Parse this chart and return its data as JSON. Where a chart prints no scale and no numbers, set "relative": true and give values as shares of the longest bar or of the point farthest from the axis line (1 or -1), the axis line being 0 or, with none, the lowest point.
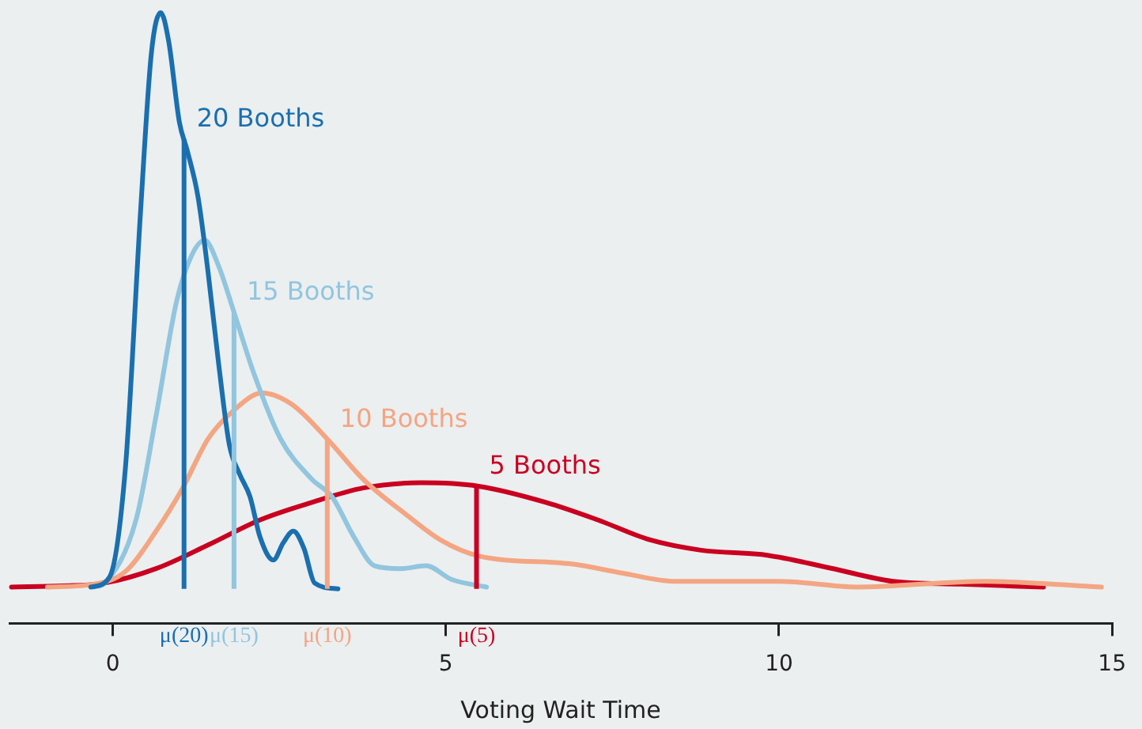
{
  "chart_data": {
    "type": "line",
    "relative": true,
    "xlabel": "Voting Wait Time",
    "xlim": [
      -1.55,
      15
    ],
    "xticks": [
      0,
      5,
      10,
      15
    ],
    "grid": false,
    "legend": false,
    "marker": "none",
    "series": [
      {
        "name": "20 Booths",
        "color": "#1a6faf",
        "x": [
          -0.33,
          -0.05,
          0.19,
          0.42,
          0.58,
          0.72,
          0.84,
          1.0,
          1.12,
          1.28,
          1.43,
          1.59,
          1.75,
          1.9,
          2.06,
          2.21,
          2.41,
          2.56,
          2.71,
          2.87,
          3.03,
          3.38
        ],
        "values": [
          0.003,
          0.02,
          0.21,
          0.66,
          0.93,
          1,
          0.95,
          0.81,
          0.76,
          0.68,
          0.55,
          0.39,
          0.25,
          0.2,
          0.16,
          0.09,
          0.05,
          0.08,
          0.1,
          0.07,
          0.01,
          0
        ]
      },
      {
        "name": "15 Booths",
        "color": "#92c5de",
        "x": [
          -0.28,
          -0.12,
          0.35,
          0.65,
          0.96,
          1.19,
          1.38,
          1.59,
          1.82,
          2.13,
          2.52,
          2.99,
          3.29,
          3.62,
          3.93,
          4.32,
          4.7,
          5.09,
          5.61
        ],
        "values": [
          0.003,
          0.01,
          0.12,
          0.3,
          0.5,
          0.58,
          0.605,
          0.56,
          0.48,
          0.37,
          0.26,
          0.19,
          0.16,
          0.09,
          0.04,
          0.035,
          0.04,
          0.016,
          0.003
        ]
      },
      {
        "name": "10 Booths",
        "color": "#f4a582",
        "x": [
          -0.98,
          -0.28,
          0.19,
          0.65,
          1.05,
          1.43,
          1.82,
          2.24,
          2.69,
          3.22,
          3.76,
          4.39,
          4.93,
          5.49,
          6.89,
          7.66,
          8.43,
          10.0,
          11.17,
          13.1,
          14.84
        ],
        "values": [
          0.003,
          0.008,
          0.03,
          0.1,
          0.175,
          0.26,
          0.31,
          0.34,
          0.32,
          0.26,
          0.19,
          0.13,
          0.084,
          0.057,
          0.043,
          0.027,
          0.013,
          0.013,
          0.003,
          0.013,
          0.003
        ]
      },
      {
        "name": "5 Booths",
        "color": "#ca0020",
        "x": [
          -1.52,
          -0.75,
          -0.12,
          0.65,
          1.43,
          2.22,
          2.99,
          3.76,
          4.63,
          5.49,
          6.5,
          7.27,
          8.06,
          8.83,
          9.84,
          10.77,
          11.71,
          12.73,
          13.97
        ],
        "values": [
          0.003,
          0.005,
          0.01,
          0.035,
          0.076,
          0.12,
          0.15,
          0.175,
          0.184,
          0.178,
          0.15,
          0.12,
          0.085,
          0.067,
          0.058,
          0.036,
          0.013,
          0.008,
          0.003
        ]
      }
    ],
    "ref_lines": [
      {
        "axis": "x",
        "value": 1.07,
        "label": "μ(20)",
        "color": "#1a6faf"
      },
      {
        "axis": "x",
        "value": 1.82,
        "label": "μ(15)",
        "color": "#92c5de"
      },
      {
        "axis": "x",
        "value": 3.22,
        "label": "μ(10)",
        "color": "#f4a582"
      },
      {
        "axis": "x",
        "value": 5.46,
        "label": "μ(5)",
        "color": "#ca0020"
      }
    ]
  }
}
